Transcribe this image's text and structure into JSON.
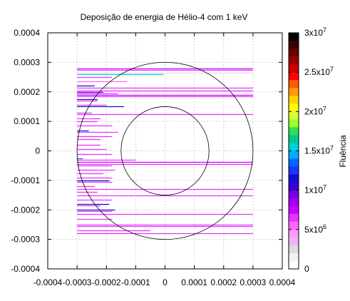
{
  "chart_data": {
    "type": "heatmap",
    "title": "Deposição de energia de Hélio-4 com 1 keV",
    "xlabel": "",
    "ylabel": "",
    "xlim": [
      -0.0004,
      0.0004
    ],
    "ylim": [
      -0.0004,
      0.0004
    ],
    "grid": true,
    "x_ticks": [
      "-0.0004",
      "-0.0003",
      "-0.0002",
      "-0.0001",
      "0",
      "0.0001",
      "0.0002",
      "0.0003",
      "0.0004"
    ],
    "y_ticks": [
      "0.0004",
      "0.0003",
      "0.0002",
      "0.0001",
      "0",
      "-0.0001",
      "-0.0002",
      "-0.0003",
      "-0.0004"
    ],
    "circles": [
      {
        "cx": 0,
        "cy": 0,
        "r": 0.00015
      },
      {
        "cx": 0,
        "cy": 0,
        "r": 0.0003
      }
    ],
    "colorbar": {
      "label": "Fluência",
      "min": 0,
      "max": 30000000,
      "ticks": [
        {
          "value": 30000000,
          "base": "3x10",
          "exp": "7"
        },
        {
          "value": 25000000,
          "base": "2.5x10",
          "exp": "7"
        },
        {
          "value": 20000000,
          "base": "2x10",
          "exp": "7"
        },
        {
          "value": 15000000,
          "base": "1.5x10",
          "exp": "7"
        },
        {
          "value": 10000000,
          "base": "1x10",
          "exp": "7"
        },
        {
          "value": 5000000,
          "base": "5x10",
          "exp": "6"
        },
        {
          "value": 0,
          "base": "0",
          "exp": ""
        }
      ],
      "palette": [
        "#000000",
        "#3d0000",
        "#6a0000",
        "#9a0000",
        "#c80000",
        "#ff0000",
        "#ff5a00",
        "#ff9a00",
        "#ffd200",
        "#ffff00",
        "#d9ff33",
        "#9cff2e",
        "#33dd55",
        "#00c88c",
        "#00d0d8",
        "#00aaff",
        "#0066ff",
        "#1e32ff",
        "#1010cc",
        "#3a00d8",
        "#7800e0",
        "#a000f0",
        "#c800ff",
        "#e633ff",
        "#ff66ff",
        "#ff9aff",
        "#f0b4f0",
        "#dcdcdc",
        "#f2f2f2",
        "#ffffff"
      ]
    },
    "tracks": [
      {
        "y": 0.00028,
        "x0": -0.0003,
        "x1": 0.0003,
        "fluence": 7000000
      },
      {
        "y": 0.000275,
        "x0": -0.0003,
        "x1": 0.0003,
        "fluence": 6000000
      },
      {
        "y": 0.000265,
        "x0": -0.0003,
        "x1": 0.0003,
        "fluence": 2500000
      },
      {
        "y": 0.00026,
        "x0": -0.0003,
        "x1": -5e-06,
        "fluence": 16000000
      },
      {
        "y": 0.00025,
        "x0": -0.0003,
        "x1": -0.00018,
        "fluence": 6000000
      },
      {
        "y": 0.000235,
        "x0": -0.0003,
        "x1": -0.00013,
        "fluence": 5000000
      },
      {
        "y": 0.00022,
        "x0": -0.0003,
        "x1": -0.00024,
        "fluence": 11000000
      },
      {
        "y": 0.000215,
        "x0": -0.0003,
        "x1": 0.0003,
        "fluence": 6000000
      },
      {
        "y": 0.000205,
        "x0": -0.0003,
        "x1": 0.0003,
        "fluence": 6000000
      },
      {
        "y": 0.0002,
        "x0": -0.0003,
        "x1": -0.00021,
        "fluence": 10000000
      },
      {
        "y": 0.000195,
        "x0": -0.0003,
        "x1": -0.00016,
        "fluence": 6500000
      },
      {
        "y": 0.00019,
        "x0": -0.0003,
        "x1": 0.0003,
        "fluence": 7000000
      },
      {
        "y": 0.000185,
        "x0": -0.0003,
        "x1": 0.0003,
        "fluence": 6000000
      },
      {
        "y": 0.000175,
        "x0": -0.0003,
        "x1": -0.00023,
        "fluence": 11000000
      },
      {
        "y": 0.00017,
        "x0": -0.0003,
        "x1": -0.00023,
        "fluence": 6000000
      },
      {
        "y": 0.000155,
        "x0": -0.0003,
        "x1": -0.0002,
        "fluence": 6000000
      },
      {
        "y": 0.00015,
        "x0": -0.0003,
        "x1": -0.00014,
        "fluence": 11000000
      },
      {
        "y": 0.00013,
        "x0": -0.0003,
        "x1": -0.00025,
        "fluence": 6000000
      },
      {
        "y": 0.000125,
        "x0": -0.0003,
        "x1": 0.0003,
        "fluence": 6000000
      },
      {
        "y": 0.00011,
        "x0": -0.0003,
        "x1": -0.00022,
        "fluence": 6000000
      },
      {
        "y": 0.0001,
        "x0": -0.0003,
        "x1": -0.00023,
        "fluence": 6000000
      },
      {
        "y": 8.5e-05,
        "x0": -0.0003,
        "x1": -0.00018,
        "fluence": 6000000
      },
      {
        "y": 7e-05,
        "x0": -0.0003,
        "x1": -0.00026,
        "fluence": 11000000
      },
      {
        "y": 6.5e-05,
        "x0": -0.0003,
        "x1": -0.00016,
        "fluence": 6000000
      },
      {
        "y": 5e-05,
        "x0": -0.0003,
        "x1": -0.00029,
        "fluence": 6000000
      },
      {
        "y": 5e-05,
        "x0": -0.0003,
        "x1": -0.00018,
        "fluence": 6000000
      },
      {
        "y": 4e-05,
        "x0": -0.0003,
        "x1": -0.00022,
        "fluence": 6000000
      },
      {
        "y": 2e-05,
        "x0": -0.0003,
        "x1": -0.00022,
        "fluence": 6000000
      },
      {
        "y": 5e-06,
        "x0": -0.0003,
        "x1": -0.0002,
        "fluence": 6000000
      },
      {
        "y": -1e-05,
        "x0": -0.0003,
        "x1": -0.00027,
        "fluence": 14000000
      },
      {
        "y": -1.2e-05,
        "x0": -0.0003,
        "x1": -0.00018,
        "fluence": 6000000
      },
      {
        "y": -2.5e-05,
        "x0": -0.0003,
        "x1": -0.00028,
        "fluence": 13000000
      },
      {
        "y": -3e-05,
        "x0": -0.0003,
        "x1": -0.0001,
        "fluence": 6000000
      },
      {
        "y": -3.8e-05,
        "x0": -0.0003,
        "x1": 0.0003,
        "fluence": 7500000
      },
      {
        "y": -4.5e-05,
        "x0": -0.0003,
        "x1": 0.0003,
        "fluence": 6000000
      },
      {
        "y": -5e-05,
        "x0": -0.0003,
        "x1": -0.00018,
        "fluence": 6000000
      },
      {
        "y": -6.5e-05,
        "x0": -0.0003,
        "x1": -0.00017,
        "fluence": 6000000
      },
      {
        "y": -7.5e-05,
        "x0": -0.0003,
        "x1": -0.00021,
        "fluence": 6000000
      },
      {
        "y": -9e-05,
        "x0": -0.0003,
        "x1": -0.00018,
        "fluence": 6000000
      },
      {
        "y": -0.0001,
        "x0": -0.0003,
        "x1": -0.00019,
        "fluence": 11000000
      },
      {
        "y": -0.000105,
        "x0": -0.0003,
        "x1": -0.00018,
        "fluence": 6000000
      },
      {
        "y": -0.00012,
        "x0": -0.0003,
        "x1": -0.00024,
        "fluence": 6000000
      },
      {
        "y": -0.00013,
        "x0": -0.0003,
        "x1": 0.0003,
        "fluence": 6000000
      },
      {
        "y": -0.00014,
        "x0": -0.0003,
        "x1": -0.00023,
        "fluence": 6000000
      },
      {
        "y": -0.00015,
        "x0": -0.0003,
        "x1": 0.0003,
        "fluence": 6000000
      },
      {
        "y": -0.000165,
        "x0": -0.0003,
        "x1": -0.00018,
        "fluence": 6000000
      },
      {
        "y": -0.00018,
        "x0": -0.0003,
        "x1": -0.00019,
        "fluence": 11000000
      },
      {
        "y": -0.000185,
        "x0": -0.0003,
        "x1": -0.00022,
        "fluence": 6000000
      },
      {
        "y": -0.0002,
        "x0": -0.0003,
        "x1": -0.00017,
        "fluence": 11000000
      },
      {
        "y": -0.000205,
        "x0": -0.0003,
        "x1": -0.00018,
        "fluence": 6000000
      },
      {
        "y": -0.000215,
        "x0": -0.0003,
        "x1": 0.0003,
        "fluence": 6000000
      },
      {
        "y": -0.00023,
        "x0": -0.0003,
        "x1": -0.00018,
        "fluence": 6000000
      },
      {
        "y": -0.00025,
        "x0": -0.0003,
        "x1": 0.0003,
        "fluence": 6000000
      },
      {
        "y": -0.000255,
        "x0": -0.0003,
        "x1": 0.0003,
        "fluence": 6000000
      },
      {
        "y": -0.00027,
        "x0": -0.0003,
        "x1": -5e-05,
        "fluence": 6000000
      },
      {
        "y": -0.00028,
        "x0": -0.0003,
        "x1": 0.0003,
        "fluence": 6000000
      }
    ]
  }
}
